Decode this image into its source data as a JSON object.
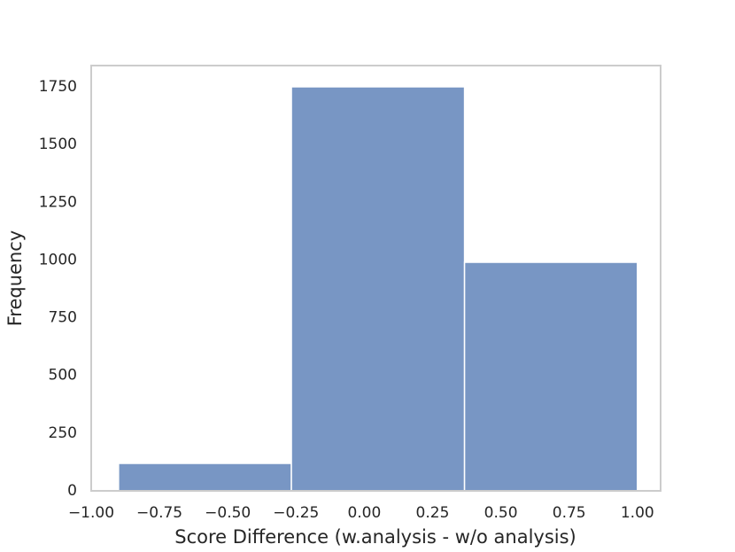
{
  "chart_data": {
    "type": "histogram",
    "xlabel": "Score Difference (w.analysis - w/o analysis)",
    "ylabel": "Frequency",
    "bins": [
      -0.9,
      -0.267,
      0.367,
      1.0
    ],
    "values": [
      119,
      1750,
      990
    ],
    "color": "#7896c4",
    "xlim": [
      -1.0,
      1.085
    ],
    "ylim": [
      0,
      1842
    ],
    "xticks": [
      {
        "value": -1.0,
        "label": "−1.00"
      },
      {
        "value": -0.75,
        "label": "−0.75"
      },
      {
        "value": -0.5,
        "label": "−0.50"
      },
      {
        "value": -0.25,
        "label": "−0.25"
      },
      {
        "value": 0,
        "label": "0.00"
      },
      {
        "value": 0.25,
        "label": "0.25"
      },
      {
        "value": 0.5,
        "label": "0.50"
      },
      {
        "value": 0.75,
        "label": "0.75"
      },
      {
        "value": 1.0,
        "label": "1.00"
      }
    ],
    "yticks": [
      0,
      250,
      500,
      750,
      1000,
      1250,
      1500,
      1750
    ],
    "grid": false
  }
}
